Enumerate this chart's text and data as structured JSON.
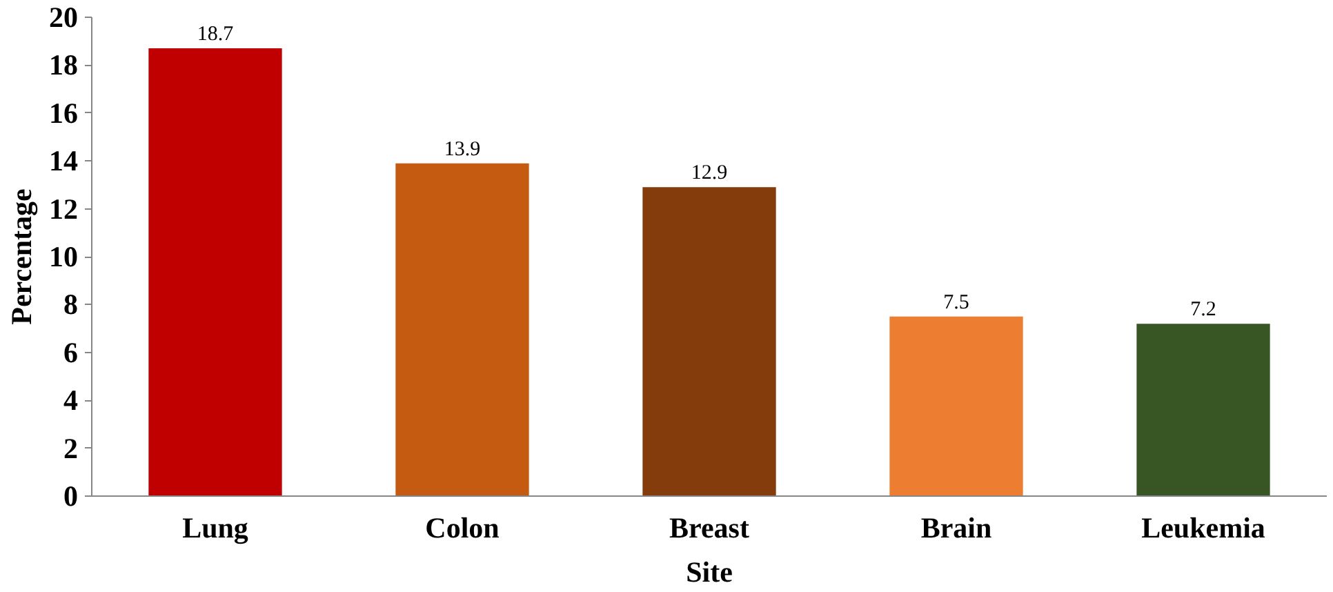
{
  "chart_data": {
    "type": "bar",
    "xlabel": "Site",
    "ylabel": "Percentage",
    "categories": [
      "Lung",
      "Colon",
      "Breast",
      "Brain",
      "Leukemia"
    ],
    "values": [
      18.7,
      13.9,
      12.9,
      7.5,
      7.2
    ],
    "colors": [
      "#c00000",
      "#c55a11",
      "#843c0c",
      "#ed7d31",
      "#375623"
    ],
    "ylim": [
      0,
      20
    ],
    "yticks": [
      0,
      2,
      4,
      6,
      8,
      10,
      12,
      14,
      16,
      18,
      20
    ],
    "data_labels": true,
    "grid": false
  }
}
